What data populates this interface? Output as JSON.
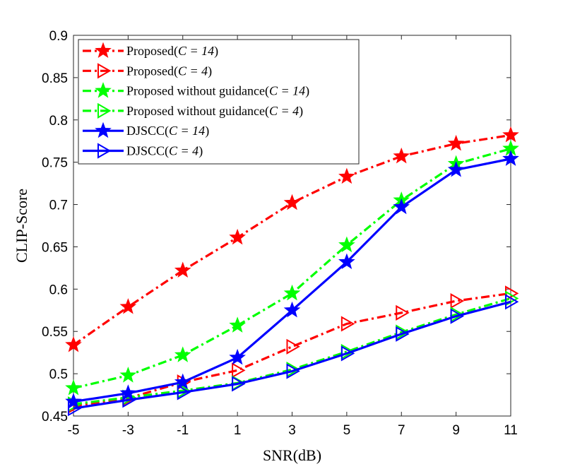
{
  "chart_data": {
    "type": "line",
    "title": "",
    "xlabel": "SNR(dB)",
    "ylabel": "CLIP-Score",
    "x": [
      -5,
      -3,
      -1,
      1,
      3,
      5,
      7,
      9,
      11
    ],
    "x_tick_labels": [
      "-5",
      "-3",
      "-1",
      "1",
      "3",
      "5",
      "7",
      "9",
      "11"
    ],
    "y_tick_labels": [
      "0.45",
      "0.5",
      "0.55",
      "0.6",
      "0.65",
      "0.7",
      "0.75",
      "0.8",
      "0.85",
      "0.9"
    ],
    "y_ticks": [
      0.45,
      0.5,
      0.55,
      0.6,
      0.65,
      0.7,
      0.75,
      0.8,
      0.85,
      0.9
    ],
    "xlim": [
      -5,
      11
    ],
    "ylim": [
      0.45,
      0.9
    ],
    "grid": false,
    "legend_position": "top-left",
    "series": [
      {
        "name": "Proposed",
        "param": "C = 14",
        "color": "#ff0000",
        "dash": "dashdot",
        "marker": "star",
        "values": [
          0.534,
          0.579,
          0.622,
          0.661,
          0.702,
          0.733,
          0.757,
          0.772,
          0.782
        ]
      },
      {
        "name": "Proposed",
        "param": "C = 4",
        "color": "#ff0000",
        "dash": "dashdot",
        "marker": "triangle-right",
        "values": [
          0.462,
          0.471,
          0.49,
          0.504,
          0.532,
          0.559,
          0.572,
          0.586,
          0.595
        ]
      },
      {
        "name": "Proposed without guidance",
        "param": "C = 14",
        "color": "#00ff00",
        "dash": "dashdot",
        "marker": "star",
        "values": [
          0.483,
          0.498,
          0.522,
          0.557,
          0.595,
          0.652,
          0.705,
          0.748,
          0.766
        ]
      },
      {
        "name": "Proposed without guidance",
        "param": "C = 4",
        "color": "#00ff00",
        "dash": "dashdot",
        "marker": "triangle-right",
        "values": [
          0.464,
          0.472,
          0.48,
          0.489,
          0.505,
          0.526,
          0.549,
          0.57,
          0.589
        ]
      },
      {
        "name": "DJSCC",
        "param": "C = 14",
        "color": "#0000ff",
        "dash": "solid",
        "marker": "star",
        "values": [
          0.467,
          0.477,
          0.49,
          0.519,
          0.575,
          0.632,
          0.697,
          0.741,
          0.754
        ]
      },
      {
        "name": "DJSCC",
        "param": "C = 4",
        "color": "#0000ff",
        "dash": "solid",
        "marker": "triangle-right",
        "values": [
          0.459,
          0.469,
          0.478,
          0.488,
          0.503,
          0.524,
          0.547,
          0.568,
          0.585
        ]
      }
    ]
  }
}
